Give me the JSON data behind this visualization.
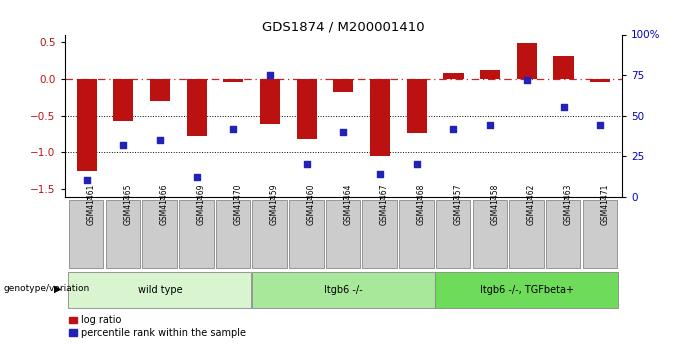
{
  "title": "GDS1874 / M200001410",
  "samples": [
    "GSM41461",
    "GSM41465",
    "GSM41466",
    "GSM41469",
    "GSM41470",
    "GSM41459",
    "GSM41460",
    "GSM41464",
    "GSM41467",
    "GSM41468",
    "GSM41457",
    "GSM41458",
    "GSM41462",
    "GSM41463",
    "GSM41471"
  ],
  "log_ratio": [
    -1.25,
    -0.57,
    -0.3,
    -0.78,
    -0.05,
    -0.62,
    -0.82,
    -0.18,
    -1.05,
    -0.73,
    0.08,
    0.12,
    0.49,
    0.31,
    -0.05
  ],
  "percentile_rank": [
    10,
    32,
    35,
    12,
    42,
    75,
    20,
    40,
    14,
    20,
    42,
    44,
    72,
    55,
    44
  ],
  "groups": [
    {
      "label": "wild type",
      "start": 0,
      "end": 5,
      "color": "#d8f5d0"
    },
    {
      "label": "Itgb6 -/-",
      "start": 5,
      "end": 10,
      "color": "#a8e89a"
    },
    {
      "label": "Itgb6 -/-, TGFbeta+",
      "start": 10,
      "end": 15,
      "color": "#6edc5a"
    }
  ],
  "bar_color": "#bb1111",
  "dot_color": "#2222bb",
  "zero_line_color": "#cc2222",
  "right_axis_color": "#0000bb",
  "ylim_left": [
    -1.6,
    0.6
  ],
  "ylim_right": [
    0,
    100
  ],
  "yticks_left": [
    -1.5,
    -1.0,
    -0.5,
    0,
    0.5
  ],
  "yticks_right": [
    0,
    25,
    50,
    75,
    100
  ],
  "legend_bar_label": "log ratio",
  "legend_dot_label": "percentile rank within the sample",
  "genotype_label": "genotype/variation"
}
